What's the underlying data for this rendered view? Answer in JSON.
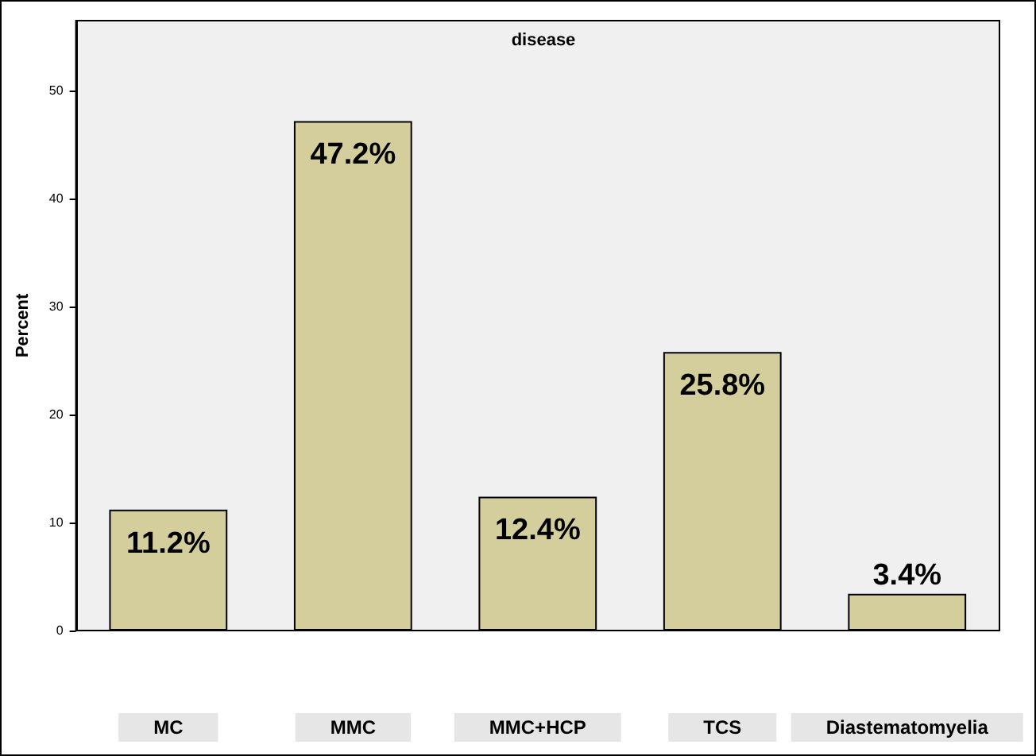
{
  "chart_data": {
    "type": "bar",
    "title": "disease",
    "ylabel": "Percent",
    "categories": [
      "MC",
      "MMC",
      "MMC+HCP",
      "TCS",
      "Diastematomyelia"
    ],
    "values": [
      11.2,
      47.2,
      12.4,
      25.8,
      3.4
    ],
    "value_labels": [
      "11.2%",
      "47.2%",
      "12.4%",
      "25.8%",
      "3.4%"
    ],
    "color": "#d3ce9c",
    "ylim": [
      0,
      56.5
    ],
    "yticks": [
      0,
      10,
      20,
      30,
      40,
      50
    ],
    "grid": false
  }
}
